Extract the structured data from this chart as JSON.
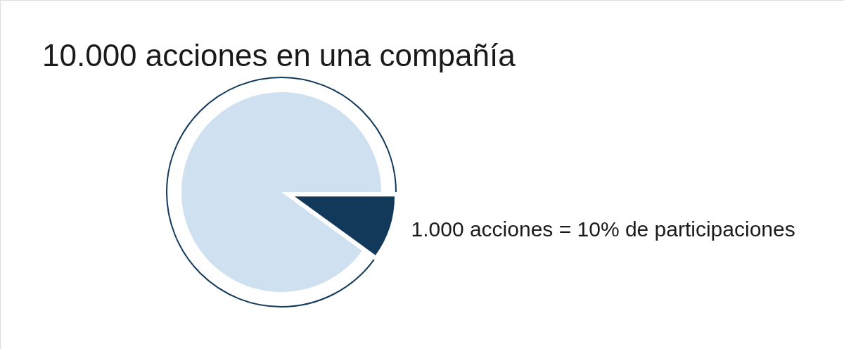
{
  "chart_data": {
    "type": "pie",
    "title": "10.000 acciones en una compañía",
    "categories": [
      "1.000 acciones = 10% de participaciones",
      null
    ],
    "values": [
      10,
      90
    ],
    "colors": [
      "#12385a",
      "#cfe0f1"
    ]
  }
}
